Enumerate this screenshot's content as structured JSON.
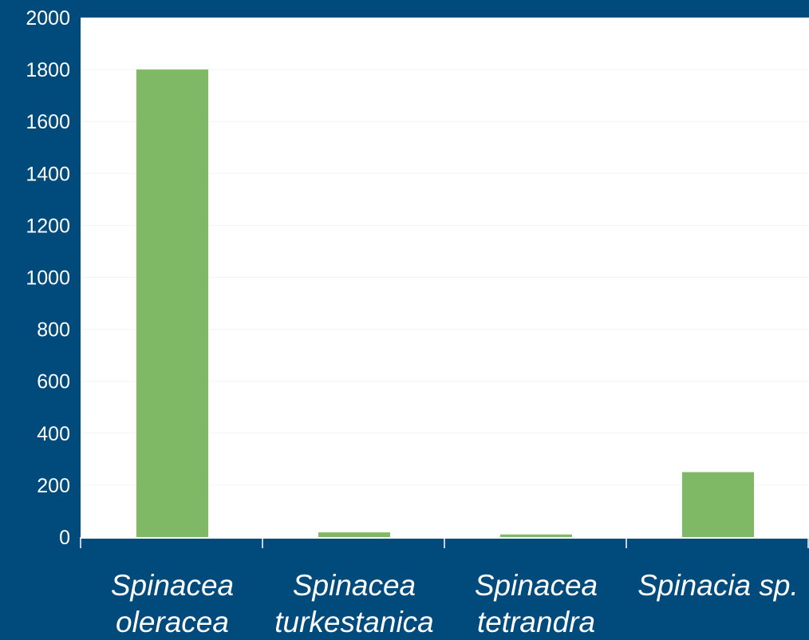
{
  "chart_data": {
    "type": "bar",
    "categories": [
      [
        "Spinacea",
        "oleracea"
      ],
      [
        "Spinacea",
        "turkestanica"
      ],
      [
        "Spinacea",
        "tetrandra"
      ],
      [
        "Spinacia sp."
      ]
    ],
    "values": [
      1800,
      18,
      10,
      250
    ],
    "ylim": [
      0,
      2000
    ],
    "yticks": [
      "0",
      "200",
      "400",
      "600",
      "800",
      "1000",
      "1200",
      "1400",
      "1600",
      "1800",
      "2000"
    ],
    "grid": true,
    "legend": "none",
    "title": "",
    "xlabel": "",
    "ylabel": ""
  },
  "colors": {
    "background": "#004a7c",
    "plot_area": "#ffffff",
    "bar": "#80b965",
    "gridline": "#f3f3f3",
    "axis_text": "#ffffff"
  }
}
